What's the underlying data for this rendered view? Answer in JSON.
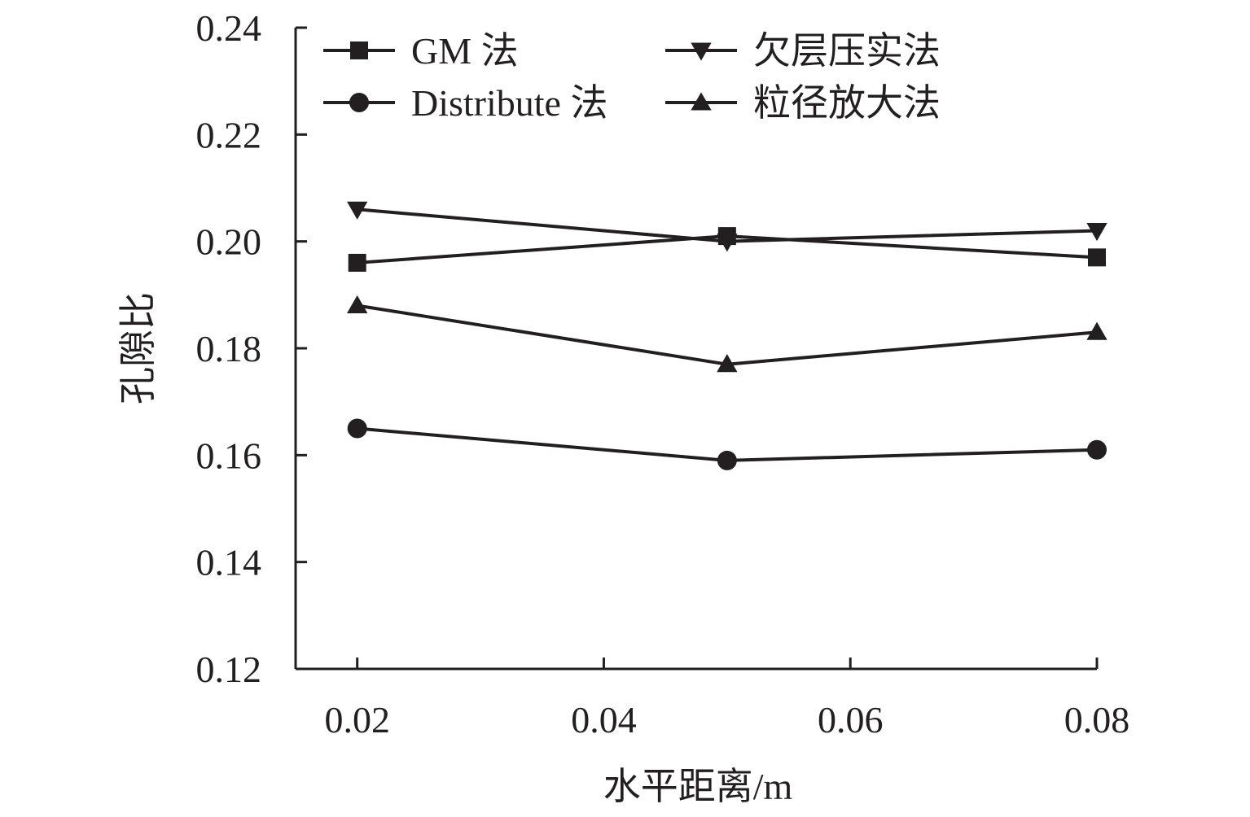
{
  "chart_data": {
    "type": "line",
    "title": "",
    "xlabel": "水平距离/m",
    "ylabel": "孔隙比",
    "x": [
      0.02,
      0.05,
      0.08
    ],
    "xlim": [
      0.015,
      0.08
    ],
    "xticks": [
      0.02,
      0.04,
      0.06,
      0.08
    ],
    "xtick_labels": [
      "0.02",
      "0.04",
      "0.06",
      "0.08"
    ],
    "ylim": [
      0.12,
      0.24
    ],
    "yticks": [
      0.12,
      0.14,
      0.16,
      0.18,
      0.2,
      0.22,
      0.24
    ],
    "ytick_labels": [
      "0.12",
      "0.14",
      "0.16",
      "0.18",
      "0.20",
      "0.22",
      "0.24"
    ],
    "grid": false,
    "legend_position": "top",
    "series": [
      {
        "name": "GM 法",
        "marker": "square",
        "values": [
          0.196,
          0.201,
          0.197
        ]
      },
      {
        "name": "Distribute 法",
        "marker": "circle",
        "values": [
          0.165,
          0.159,
          0.161
        ]
      },
      {
        "name": "欠层压实法",
        "marker": "triangle-down",
        "values": [
          0.206,
          0.2,
          0.202
        ]
      },
      {
        "name": "粒径放大法",
        "marker": "triangle-up",
        "values": [
          0.188,
          0.177,
          0.183
        ]
      }
    ],
    "colors": {
      "line": "#231f20"
    }
  }
}
